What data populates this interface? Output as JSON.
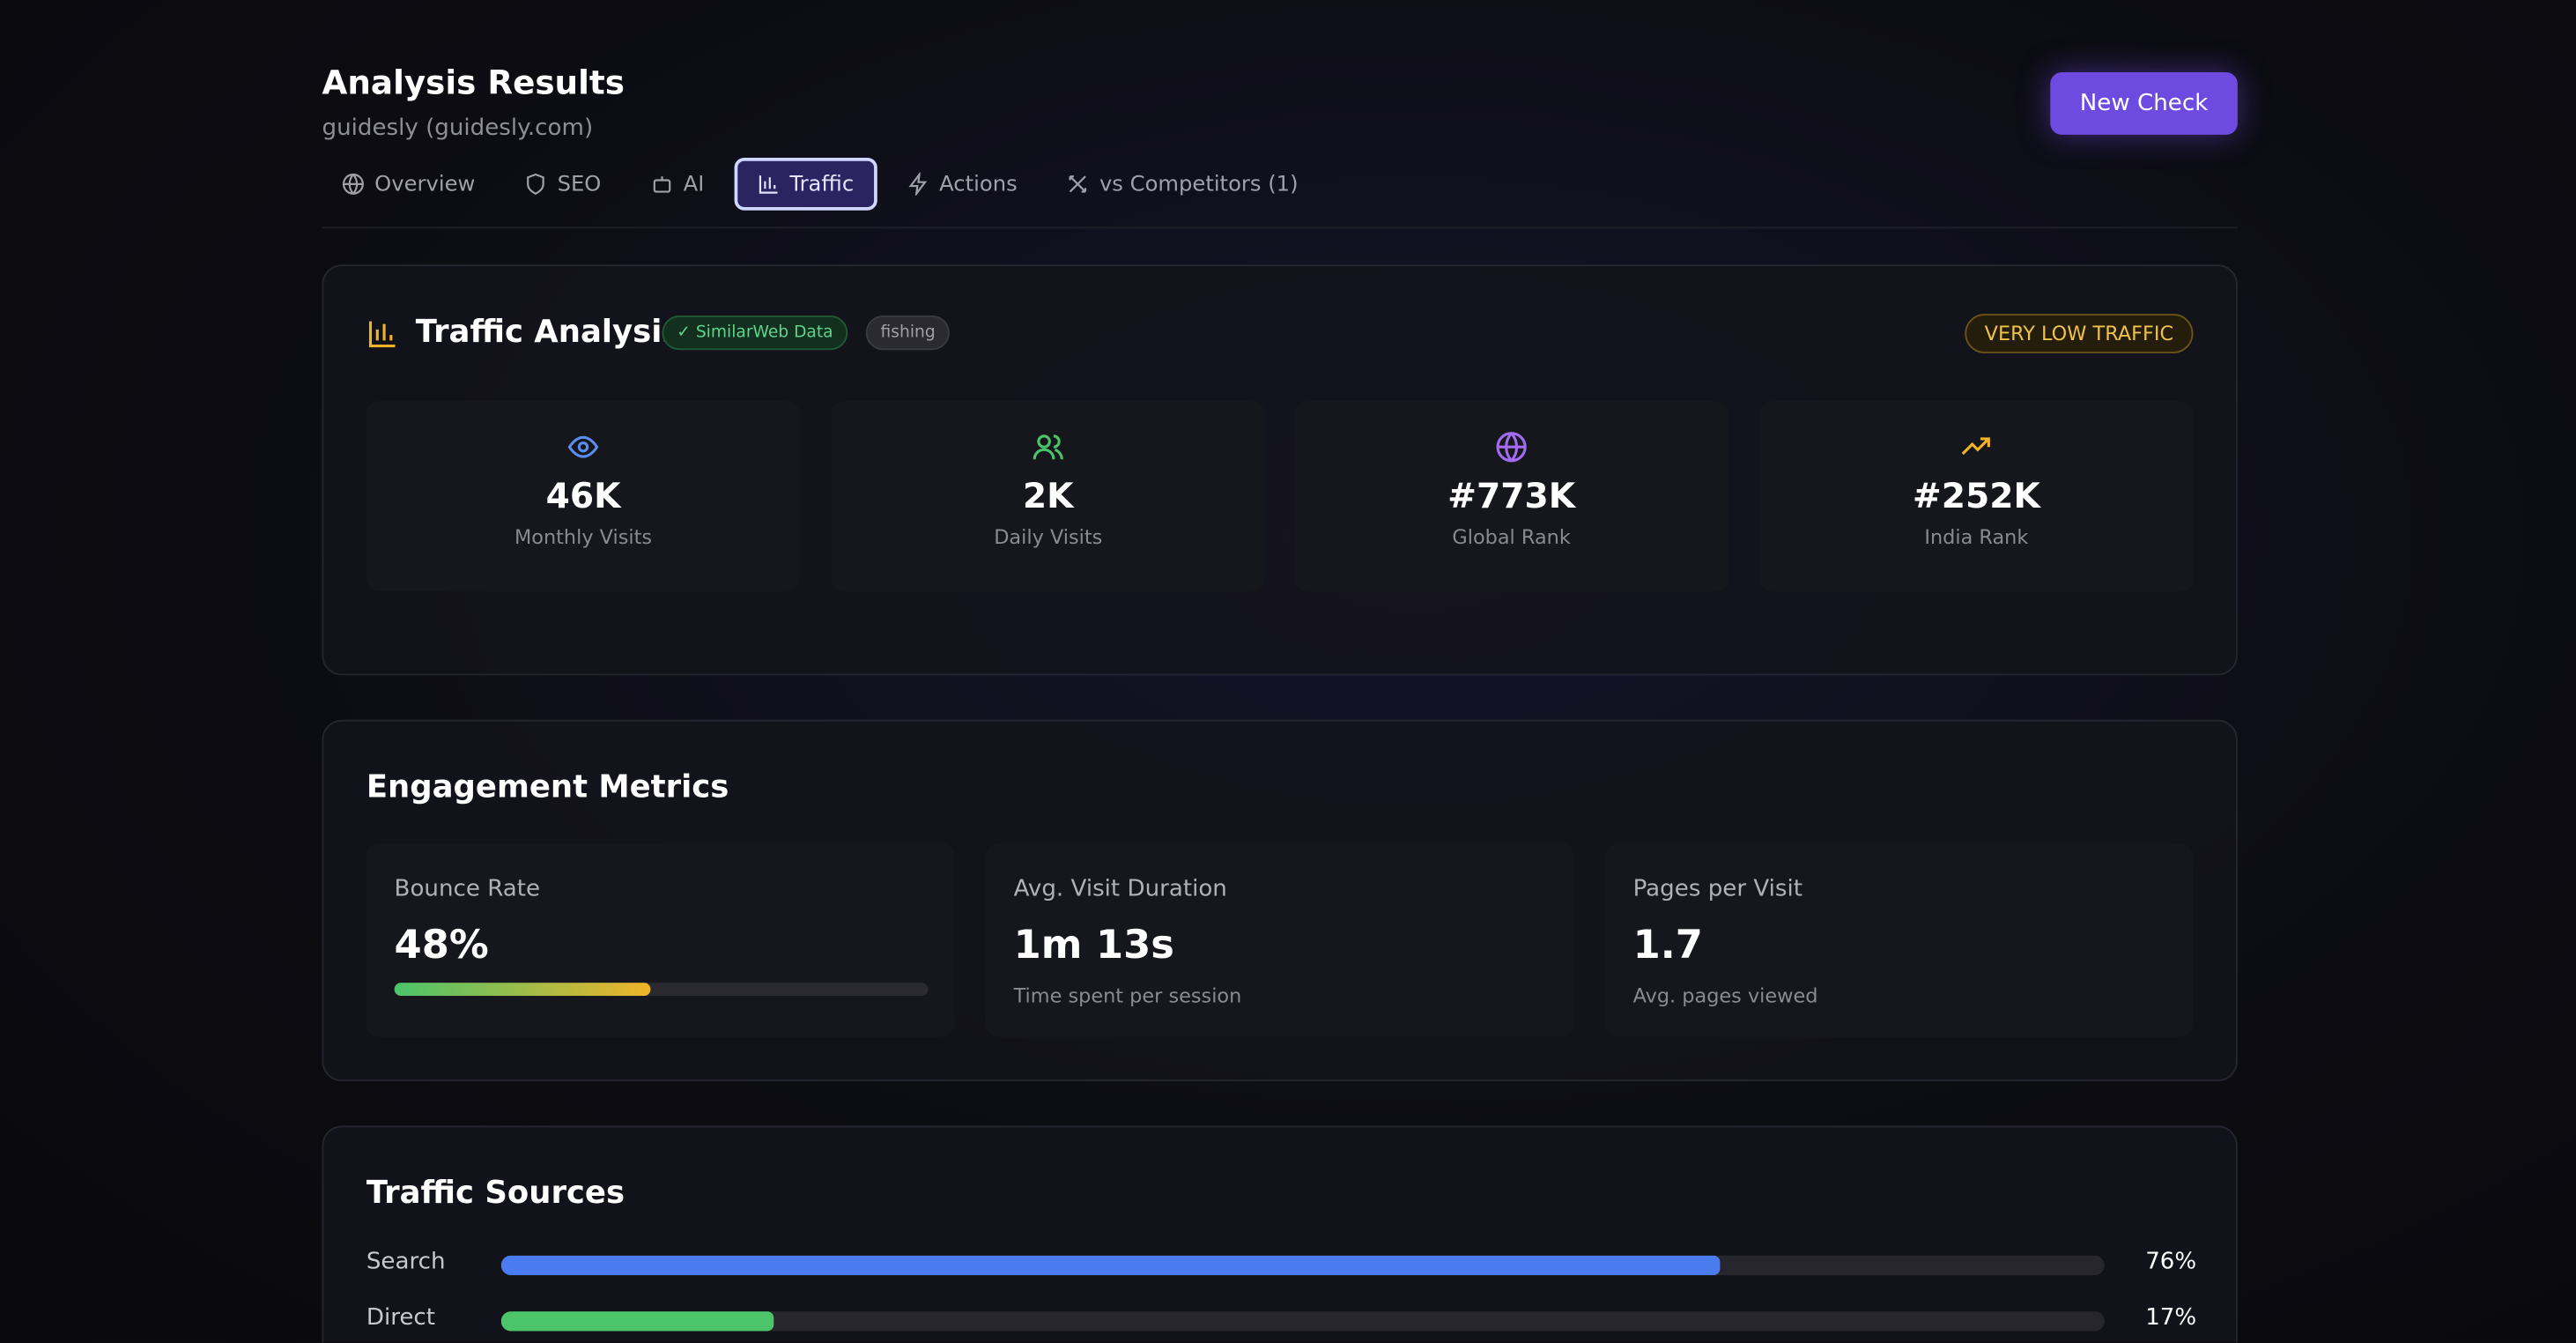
{
  "header": {
    "title": "Analysis Results",
    "subtitle": "guidesly (guidesly.com)",
    "button": "New Check"
  },
  "tabs": [
    "Overview",
    "SEO",
    "AI",
    "Traffic",
    "Actions",
    "vs Competitors (1)"
  ],
  "traffic": {
    "title": "Traffic Analysis",
    "badge": "✓ SimilarWeb Data",
    "tag": "fishing",
    "level": "VERY LOW TRAFFIC",
    "stats": [
      {
        "value": "46K",
        "label": "Monthly Visits"
      },
      {
        "value": "2K",
        "label": "Daily Visits"
      },
      {
        "value": "#773K",
        "label": "Global Rank"
      },
      {
        "value": "#252K",
        "label": "India Rank"
      }
    ]
  },
  "engagement": {
    "title": "Engagement Metrics",
    "bounce": {
      "label": "Bounce Rate",
      "value": 48,
      "value_label": "48%"
    },
    "duration": {
      "label": "Avg. Visit Duration",
      "value": "1m 13s",
      "note": "Time spent per session"
    },
    "pages": {
      "label": "Pages per Visit",
      "value": "1.7",
      "note": "Avg. pages viewed"
    }
  },
  "sources": {
    "title": "Traffic Sources",
    "items": [
      {
        "name": "Search",
        "value": 76,
        "value_label": "76%"
      },
      {
        "name": "Direct",
        "value": 17,
        "value_label": "17%"
      }
    ]
  }
}
